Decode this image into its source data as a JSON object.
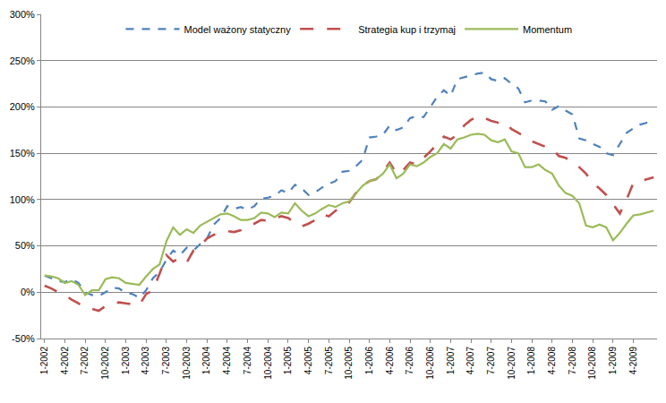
{
  "chart_data": {
    "type": "line",
    "categories": [
      "1-2002",
      null,
      null,
      "4-2002",
      null,
      null,
      "7-2002",
      null,
      null,
      "10-2002",
      null,
      null,
      "1-2003",
      null,
      null,
      "4-2003",
      null,
      null,
      "7-2003",
      null,
      null,
      "10-2003",
      null,
      null,
      "1-2004",
      null,
      null,
      "4-2004",
      null,
      null,
      "7-2004",
      null,
      null,
      "10-2004",
      null,
      null,
      "1-2005",
      null,
      null,
      "4-2005",
      null,
      null,
      "7-2005",
      null,
      null,
      "10-2005",
      null,
      null,
      "1-2006",
      null,
      null,
      "4-2006",
      null,
      null,
      "7-2006",
      null,
      null,
      "10-2006",
      null,
      null,
      "1-2007",
      null,
      null,
      "4-2007",
      null,
      null,
      "7-2007",
      null,
      null,
      "10-2007",
      null,
      null,
      "1-2008",
      null,
      null,
      "4-2008",
      null,
      null,
      "7-2008",
      null,
      null,
      "10-2008",
      null,
      null,
      "1-2009",
      null,
      null,
      "4-2009",
      null,
      null,
      null
    ],
    "series": [
      {
        "name": "Model ważony statyczny",
        "color": "#4F81BD",
        "line_style": "dash",
        "values": [
          18,
          15,
          12,
          11,
          14,
          10,
          0,
          -3,
          -4,
          0,
          5,
          4,
          -1,
          -2,
          -6,
          2,
          15,
          22,
          35,
          45,
          40,
          48,
          45,
          52,
          58,
          73,
          80,
          93,
          90,
          92,
          89,
          93,
          101,
          102,
          104,
          110,
          107,
          116,
          112,
          105,
          108,
          113,
          117,
          120,
          130,
          131,
          136,
          143,
          167,
          168,
          170,
          180,
          175,
          178,
          188,
          190,
          189,
          200,
          211,
          218,
          212,
          230,
          232,
          234,
          236,
          237,
          230,
          228,
          231,
          225,
          220,
          205,
          207,
          207,
          206,
          197,
          201,
          196,
          192,
          166,
          164,
          160,
          157,
          150,
          148,
          160,
          172,
          177,
          181,
          183,
          185
        ]
      },
      {
        "name": "Strategia kup i trzymaj",
        "color": "#C0504D",
        "line_style": "longdash",
        "values": [
          7,
          4,
          0,
          -3,
          -8,
          -12,
          -17,
          -18,
          -20,
          -15,
          -12,
          -11,
          -12,
          -13,
          -14,
          -2,
          2,
          20,
          40,
          33,
          37,
          32,
          45,
          50,
          58,
          62,
          64,
          66,
          65,
          67,
          72,
          74,
          78,
          77,
          80,
          82,
          80,
          75,
          71,
          74,
          78,
          84,
          82,
          88,
          92,
          97,
          107,
          115,
          120,
          122,
          130,
          140,
          128,
          132,
          140,
          138,
          145,
          152,
          160,
          168,
          165,
          170,
          180,
          186,
          190,
          188,
          185,
          183,
          184,
          176,
          172,
          168,
          163,
          160,
          157,
          155,
          147,
          145,
          140,
          135,
          128,
          118,
          112,
          105,
          95,
          85,
          100,
          118,
          120,
          122,
          124
        ]
      },
      {
        "name": "Momentum",
        "color": "#9BBB59",
        "line_style": "solid",
        "values": [
          18,
          17,
          15,
          10,
          12,
          8,
          -3,
          2,
          2,
          14,
          16,
          15,
          10,
          9,
          8,
          17,
          25,
          30,
          55,
          70,
          62,
          68,
          64,
          72,
          76,
          80,
          84,
          85,
          82,
          78,
          78,
          80,
          86,
          85,
          81,
          86,
          85,
          96,
          88,
          82,
          85,
          90,
          94,
          92,
          96,
          98,
          106,
          115,
          120,
          122,
          128,
          138,
          123,
          128,
          138,
          136,
          140,
          146,
          150,
          160,
          155,
          165,
          167,
          170,
          171,
          170,
          164,
          162,
          165,
          152,
          150,
          135,
          135,
          138,
          132,
          128,
          115,
          107,
          104,
          96,
          72,
          70,
          73,
          70,
          56,
          64,
          74,
          83,
          84,
          86,
          88
        ]
      }
    ],
    "ylim": [
      -50,
      300
    ],
    "yticks": [
      {
        "value": -50,
        "label": "-50%"
      },
      {
        "value": 0,
        "label": "0%"
      },
      {
        "value": 50,
        "label": "50%"
      },
      {
        "value": 100,
        "label": "100%"
      },
      {
        "value": 150,
        "label": "150%"
      },
      {
        "value": 200,
        "label": "200%"
      },
      {
        "value": 250,
        "label": "250%"
      },
      {
        "value": 300,
        "label": "300%"
      }
    ],
    "grid": true,
    "legend": "top"
  }
}
